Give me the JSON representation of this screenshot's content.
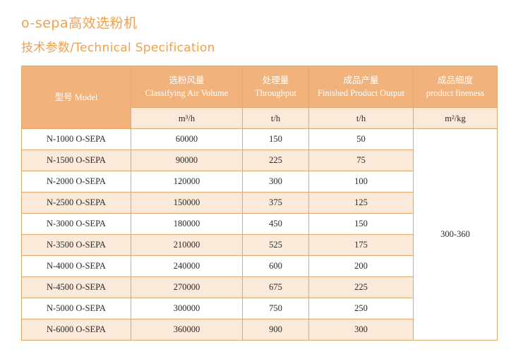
{
  "heading": {
    "title": "o-sepa高效选粉机",
    "subtitle": "技术参数/Technical Specification"
  },
  "table": {
    "headers": {
      "model": "型号 Model",
      "air_cn": "选粉风量",
      "air_en": "Classifying Air Volume",
      "through_cn": "处理量",
      "through_en": "Throughput",
      "output_cn": "成品产量",
      "output_en": "Finished Product Output",
      "fine_cn": "成品细度",
      "fine_en": "product fineness"
    },
    "units": {
      "air": "m³/h",
      "through": "t/h",
      "output": "t/h",
      "fine": "m²/kg"
    },
    "rows": [
      {
        "model": "N-1000 O-SEPA",
        "air": "60000",
        "through": "150",
        "output": "50"
      },
      {
        "model": "N-1500 O-SEPA",
        "air": "90000",
        "through": "225",
        "output": "75"
      },
      {
        "model": "N-2000 O-SEPA",
        "air": "120000",
        "through": "300",
        "output": "100"
      },
      {
        "model": "N-2500 O-SEPA",
        "air": "150000",
        "through": "375",
        "output": "125"
      },
      {
        "model": "N-3000 O-SEPA",
        "air": "180000",
        "through": "450",
        "output": "150"
      },
      {
        "model": "N-3500 O-SEPA",
        "air": "210000",
        "through": "525",
        "output": "175"
      },
      {
        "model": "N-4000 O-SEPA",
        "air": "240000",
        "through": "600",
        "output": "200"
      },
      {
        "model": "N-4500 O-SEPA",
        "air": "270000",
        "through": "675",
        "output": "225"
      },
      {
        "model": "N-5000 O-SEPA",
        "air": "300000",
        "through": "750",
        "output": "250"
      },
      {
        "model": "N-6000 O-SEPA",
        "air": "360000",
        "through": "900",
        "output": "300"
      }
    ],
    "fineness": "300-360"
  },
  "colors": {
    "accent": "#f0a04b",
    "header_bg": "#f2b27c",
    "stripe_bg": "#fbe9da"
  }
}
